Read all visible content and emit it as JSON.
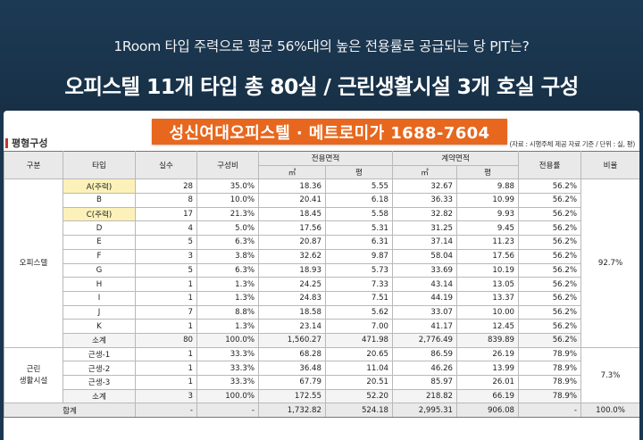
{
  "header": {
    "subtitle": "1Room 타입 주력으로 평균 56%대의 높은 전용률로 공급되는 당 PJT는?",
    "title": "오피스텔 11개 타입 총 80실 / 근린생활시설 3개 호실 구성"
  },
  "banner": "성신여대오피스텔 · 메트로미가 1688-7604",
  "section_title": "평형구성",
  "note": "(자료 : 시행주체 제공 자료 기준 / 단위 : 실, 평)",
  "columns": {
    "category": "구분",
    "type": "타입",
    "units": "실수",
    "ratio": "구성비",
    "exclusive_area": "전용면적",
    "contract_area": "계약면적",
    "sqm": "㎡",
    "pyeong": "평",
    "efficiency": "전용률",
    "share": "비율"
  },
  "officetel": {
    "label": "오피스텔",
    "share": "92.7%",
    "rows": [
      {
        "type": "A(주력)",
        "units": "28",
        "ratio": "35.0%",
        "ex_sqm": "18.36",
        "ex_py": "5.55",
        "ct_sqm": "32.67",
        "ct_py": "9.88",
        "eff": "56.2%"
      },
      {
        "type": "B",
        "units": "8",
        "ratio": "10.0%",
        "ex_sqm": "20.41",
        "ex_py": "6.18",
        "ct_sqm": "36.33",
        "ct_py": "10.99",
        "eff": "56.2%"
      },
      {
        "type": "C(주력)",
        "units": "17",
        "ratio": "21.3%",
        "ex_sqm": "18.45",
        "ex_py": "5.58",
        "ct_sqm": "32.82",
        "ct_py": "9.93",
        "eff": "56.2%"
      },
      {
        "type": "D",
        "units": "4",
        "ratio": "5.0%",
        "ex_sqm": "17.56",
        "ex_py": "5.31",
        "ct_sqm": "31.25",
        "ct_py": "9.45",
        "eff": "56.2%"
      },
      {
        "type": "E",
        "units": "5",
        "ratio": "6.3%",
        "ex_sqm": "20.87",
        "ex_py": "6.31",
        "ct_sqm": "37.14",
        "ct_py": "11.23",
        "eff": "56.2%"
      },
      {
        "type": "F",
        "units": "3",
        "ratio": "3.8%",
        "ex_sqm": "32.62",
        "ex_py": "9.87",
        "ct_sqm": "58.04",
        "ct_py": "17.56",
        "eff": "56.2%"
      },
      {
        "type": "G",
        "units": "5",
        "ratio": "6.3%",
        "ex_sqm": "18.93",
        "ex_py": "5.73",
        "ct_sqm": "33.69",
        "ct_py": "10.19",
        "eff": "56.2%"
      },
      {
        "type": "H",
        "units": "1",
        "ratio": "1.3%",
        "ex_sqm": "24.25",
        "ex_py": "7.33",
        "ct_sqm": "43.14",
        "ct_py": "13.05",
        "eff": "56.2%"
      },
      {
        "type": "I",
        "units": "1",
        "ratio": "1.3%",
        "ex_sqm": "24.83",
        "ex_py": "7.51",
        "ct_sqm": "44.19",
        "ct_py": "13.37",
        "eff": "56.2%"
      },
      {
        "type": "J",
        "units": "7",
        "ratio": "8.8%",
        "ex_sqm": "18.58",
        "ex_py": "5.62",
        "ct_sqm": "33.07",
        "ct_py": "10.00",
        "eff": "56.2%"
      },
      {
        "type": "K",
        "units": "1",
        "ratio": "1.3%",
        "ex_sqm": "23.14",
        "ex_py": "7.00",
        "ct_sqm": "41.17",
        "ct_py": "12.45",
        "eff": "56.2%"
      }
    ],
    "subtotal": {
      "type": "소계",
      "units": "80",
      "ratio": "100.0%",
      "ex_sqm": "1,560.27",
      "ex_py": "471.98",
      "ct_sqm": "2,776.49",
      "ct_py": "839.89",
      "eff": "56.2%"
    }
  },
  "retail": {
    "label_line1": "근린",
    "label_line2": "생활시설",
    "share": "7.3%",
    "rows": [
      {
        "type": "근생-1",
        "units": "1",
        "ratio": "33.3%",
        "ex_sqm": "68.28",
        "ex_py": "20.65",
        "ct_sqm": "86.59",
        "ct_py": "26.19",
        "eff": "78.9%"
      },
      {
        "type": "근생-2",
        "units": "1",
        "ratio": "33.3%",
        "ex_sqm": "36.48",
        "ex_py": "11.04",
        "ct_sqm": "46.26",
        "ct_py": "13.99",
        "eff": "78.9%"
      },
      {
        "type": "근생-3",
        "units": "1",
        "ratio": "33.3%",
        "ex_sqm": "67.79",
        "ex_py": "20.51",
        "ct_sqm": "85.97",
        "ct_py": "26.01",
        "eff": "78.9%"
      }
    ],
    "subtotal": {
      "type": "소계",
      "units": "3",
      "ratio": "100.0%",
      "ex_sqm": "172.55",
      "ex_py": "52.20",
      "ct_sqm": "218.82",
      "ct_py": "66.19",
      "eff": "78.9%"
    }
  },
  "total": {
    "label": "합계",
    "units": "-",
    "ratio": "-",
    "ex_sqm": "1,732.82",
    "ex_py": "524.18",
    "ct_sqm": "2,995.31",
    "ct_py": "906.08",
    "eff": "-",
    "share": "100.0%"
  }
}
